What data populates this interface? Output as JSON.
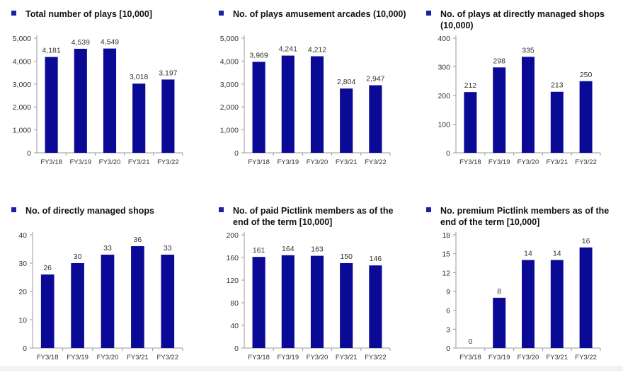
{
  "colors": {
    "bar": "#0a0a96",
    "axis": "#999999",
    "text": "#333333"
  },
  "chart_data": [
    {
      "type": "bar",
      "title": "Total number of plays [10,000]",
      "categories": [
        "FY3/18",
        "FY3/19",
        "FY3/20",
        "FY3/21",
        "FY3/22"
      ],
      "values": [
        4181,
        4539,
        4549,
        3018,
        3197
      ],
      "value_labels": [
        "4,181",
        "4,539",
        "4,549",
        "3,018",
        "3,197"
      ],
      "ylim": [
        0,
        5000
      ],
      "yticks": [
        0,
        1000,
        2000,
        3000,
        4000,
        5000
      ],
      "ytick_labels": [
        "0",
        "1,000",
        "2,000",
        "3,000",
        "4,000",
        "5,000"
      ],
      "grid": false,
      "legend": "none"
    },
    {
      "type": "bar",
      "title": "No. of plays amusement arcades (10,000)",
      "categories": [
        "FY3/18",
        "FY3/19",
        "FY3/20",
        "FY3/21",
        "FY3/22"
      ],
      "values": [
        3969,
        4241,
        4212,
        2804,
        2947
      ],
      "value_labels": [
        "3,969",
        "4,241",
        "4,212",
        "2,804",
        "2,947"
      ],
      "ylim": [
        0,
        5000
      ],
      "yticks": [
        0,
        1000,
        2000,
        3000,
        4000,
        5000
      ],
      "ytick_labels": [
        "0",
        "1,000",
        "2,000",
        "3,000",
        "4,000",
        "5,000"
      ],
      "grid": false,
      "legend": "none"
    },
    {
      "type": "bar",
      "title": "No. of plays at directly managed shops (10,000)",
      "categories": [
        "FY3/18",
        "FY3/19",
        "FY3/20",
        "FY3/21",
        "FY3/22"
      ],
      "values": [
        212,
        298,
        335,
        213,
        250
      ],
      "value_labels": [
        "212",
        "298",
        "335",
        "213",
        "250"
      ],
      "ylim": [
        0,
        400
      ],
      "yticks": [
        0,
        100,
        200,
        300,
        400
      ],
      "ytick_labels": [
        "0",
        "100",
        "200",
        "300",
        "400"
      ],
      "grid": false,
      "legend": "none"
    },
    {
      "type": "bar",
      "title": "No. of directly managed shops",
      "categories": [
        "FY3/18",
        "FY3/19",
        "FY3/20",
        "FY3/21",
        "FY3/22"
      ],
      "values": [
        26,
        30,
        33,
        36,
        33
      ],
      "value_labels": [
        "26",
        "30",
        "33",
        "36",
        "33"
      ],
      "ylim": [
        0,
        40
      ],
      "yticks": [
        0,
        10,
        20,
        30,
        40
      ],
      "ytick_labels": [
        "0",
        "10",
        "20",
        "30",
        "40"
      ],
      "grid": false,
      "legend": "none"
    },
    {
      "type": "bar",
      "title": "No. of paid Pictlink members as of the end of the term [10,000]",
      "categories": [
        "FY3/18",
        "FY3/19",
        "FY3/20",
        "FY3/21",
        "FY3/22"
      ],
      "values": [
        161,
        164,
        163,
        150,
        146
      ],
      "value_labels": [
        "161",
        "164",
        "163",
        "150",
        "146"
      ],
      "ylim": [
        0,
        200
      ],
      "yticks": [
        0,
        40,
        80,
        120,
        160,
        200
      ],
      "ytick_labels": [
        "0",
        "40",
        "80",
        "120",
        "160",
        "200"
      ],
      "grid": false,
      "legend": "none"
    },
    {
      "type": "bar",
      "title": "No. premium Pictlink members as of the end of the term [10,000]",
      "categories": [
        "FY3/18",
        "FY3/19",
        "FY3/20",
        "FY3/21",
        "FY3/22"
      ],
      "values": [
        0,
        8,
        14,
        14,
        16
      ],
      "value_labels": [
        "0",
        "8",
        "14",
        "14",
        "16"
      ],
      "ylim": [
        0,
        18
      ],
      "yticks": [
        0,
        3,
        6,
        9,
        12,
        15,
        18
      ],
      "ytick_labels": [
        "0",
        "3",
        "6",
        "9",
        "12",
        "15",
        "18"
      ],
      "grid": false,
      "legend": "none"
    }
  ]
}
